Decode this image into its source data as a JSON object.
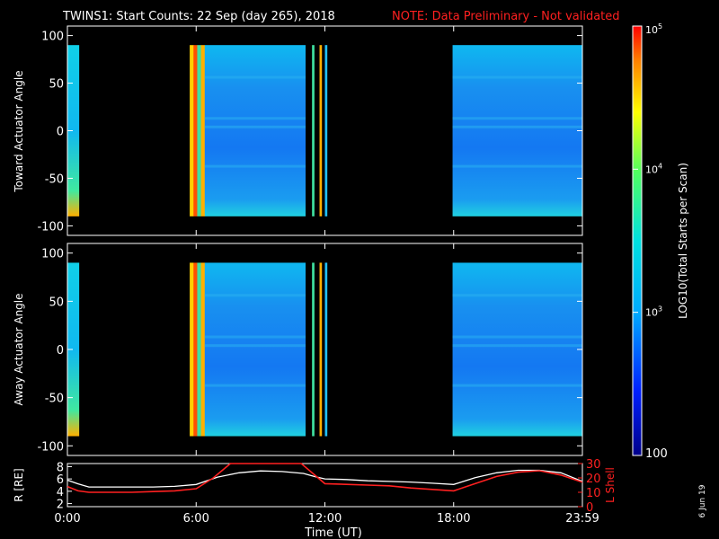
{
  "title": {
    "main": "TWINS1: Start Counts: 22 Sep (day 265), 2018",
    "note": "NOTE: Data Preliminary - Not validated"
  },
  "footer_date": "6 Jun 19",
  "chart_data": [
    {
      "type": "heatmap",
      "name": "toward",
      "ylabel": "Toward Actuator Angle",
      "ylim": [
        -110,
        110
      ],
      "yticks": [
        "100",
        "50",
        "0",
        "-50",
        "-100"
      ],
      "ytick_values": [
        100,
        50,
        0,
        -50,
        -100
      ],
      "xlim": [
        0,
        24
      ],
      "data_ylim": [
        -90,
        90
      ],
      "segments": [
        {
          "t0": 0.0,
          "t1": 0.55,
          "kind": "cyan"
        },
        {
          "t0": 5.7,
          "t1": 6.4,
          "kind": "stripes"
        },
        {
          "t0": 6.4,
          "t1": 11.1,
          "kind": "blue"
        },
        {
          "t0": 11.4,
          "t1": 11.5,
          "kind": "stripes"
        },
        {
          "t0": 11.75,
          "t1": 11.85,
          "kind": "stripes"
        },
        {
          "t0": 12.0,
          "t1": 12.1,
          "kind": "stripes"
        },
        {
          "t0": 17.95,
          "t1": 24.0,
          "kind": "blue"
        }
      ]
    },
    {
      "type": "heatmap",
      "name": "away",
      "ylabel": "Away Actuator Angle",
      "ylim": [
        -110,
        110
      ],
      "yticks": [
        "100",
        "50",
        "0",
        "-50",
        "-100"
      ],
      "ytick_values": [
        100,
        50,
        0,
        -50,
        -100
      ],
      "xlim": [
        0,
        24
      ],
      "data_ylim": [
        -90,
        90
      ],
      "segments": [
        {
          "t0": 0.0,
          "t1": 0.55,
          "kind": "cyan"
        },
        {
          "t0": 5.7,
          "t1": 6.4,
          "kind": "stripes"
        },
        {
          "t0": 6.4,
          "t1": 11.1,
          "kind": "blue"
        },
        {
          "t0": 11.4,
          "t1": 11.5,
          "kind": "stripes"
        },
        {
          "t0": 11.75,
          "t1": 11.85,
          "kind": "stripes"
        },
        {
          "t0": 12.0,
          "t1": 12.1,
          "kind": "stripes"
        },
        {
          "t0": 17.95,
          "t1": 24.0,
          "kind": "blue"
        }
      ]
    },
    {
      "type": "line",
      "name": "orbit",
      "ylabel_left": "R [RE]",
      "ylabel_right": "L Shell",
      "xlabel": "Time (UT)",
      "xlim": [
        0,
        24
      ],
      "xticks": [
        "0:00",
        "6:00",
        "12:00",
        "18:00",
        "23:59"
      ],
      "xtick_values": [
        0,
        6,
        12,
        18,
        24
      ],
      "ylim_left": [
        1.5,
        8.5
      ],
      "yticks_left": [
        "8",
        "6",
        "4",
        "2"
      ],
      "ytick_values_left": [
        8,
        6,
        4,
        2
      ],
      "ylim_right": [
        0,
        30
      ],
      "yticks_right": [
        "30",
        "20",
        "10",
        "0"
      ],
      "ytick_values_right": [
        30,
        20,
        10,
        0
      ],
      "series": [
        {
          "name": "R",
          "color": "#ffffff",
          "x": [
            0,
            0.5,
            1,
            2,
            3,
            4,
            5,
            6,
            7,
            8,
            9,
            10,
            11,
            11.5,
            12,
            13,
            14,
            15,
            16,
            17,
            18,
            19,
            20,
            21,
            22,
            23,
            24
          ],
          "y": [
            5.8,
            5.2,
            4.7,
            4.7,
            4.7,
            4.7,
            4.8,
            5.1,
            6.3,
            7.0,
            7.3,
            7.2,
            6.9,
            6.4,
            6.0,
            5.9,
            5.7,
            5.6,
            5.5,
            5.3,
            5.1,
            6.2,
            7.0,
            7.4,
            7.4,
            7.0,
            5.6
          ]
        },
        {
          "name": "L Shell",
          "color": "#ff2020",
          "x": [
            0,
            0.5,
            1,
            2,
            3,
            4,
            5,
            6,
            6.8,
            7.6,
            10.9,
            12,
            13,
            14,
            15,
            16,
            17,
            18,
            19,
            20,
            21,
            22,
            23,
            24
          ],
          "y": [
            14,
            11,
            10,
            10,
            10,
            10.5,
            11,
            12.5,
            20,
            30,
            30,
            16,
            15.5,
            15,
            14.5,
            13,
            12,
            11,
            16,
            21,
            24,
            25,
            22,
            17
          ]
        }
      ]
    }
  ],
  "colorbar": {
    "label": "LOG10(Total Starts per Scan)",
    "ticks": [
      "10^5",
      "10^4",
      "10^3",
      "100"
    ],
    "tick_values": [
      100000,
      10000,
      1000,
      100
    ],
    "range": [
      100,
      100000
    ]
  }
}
